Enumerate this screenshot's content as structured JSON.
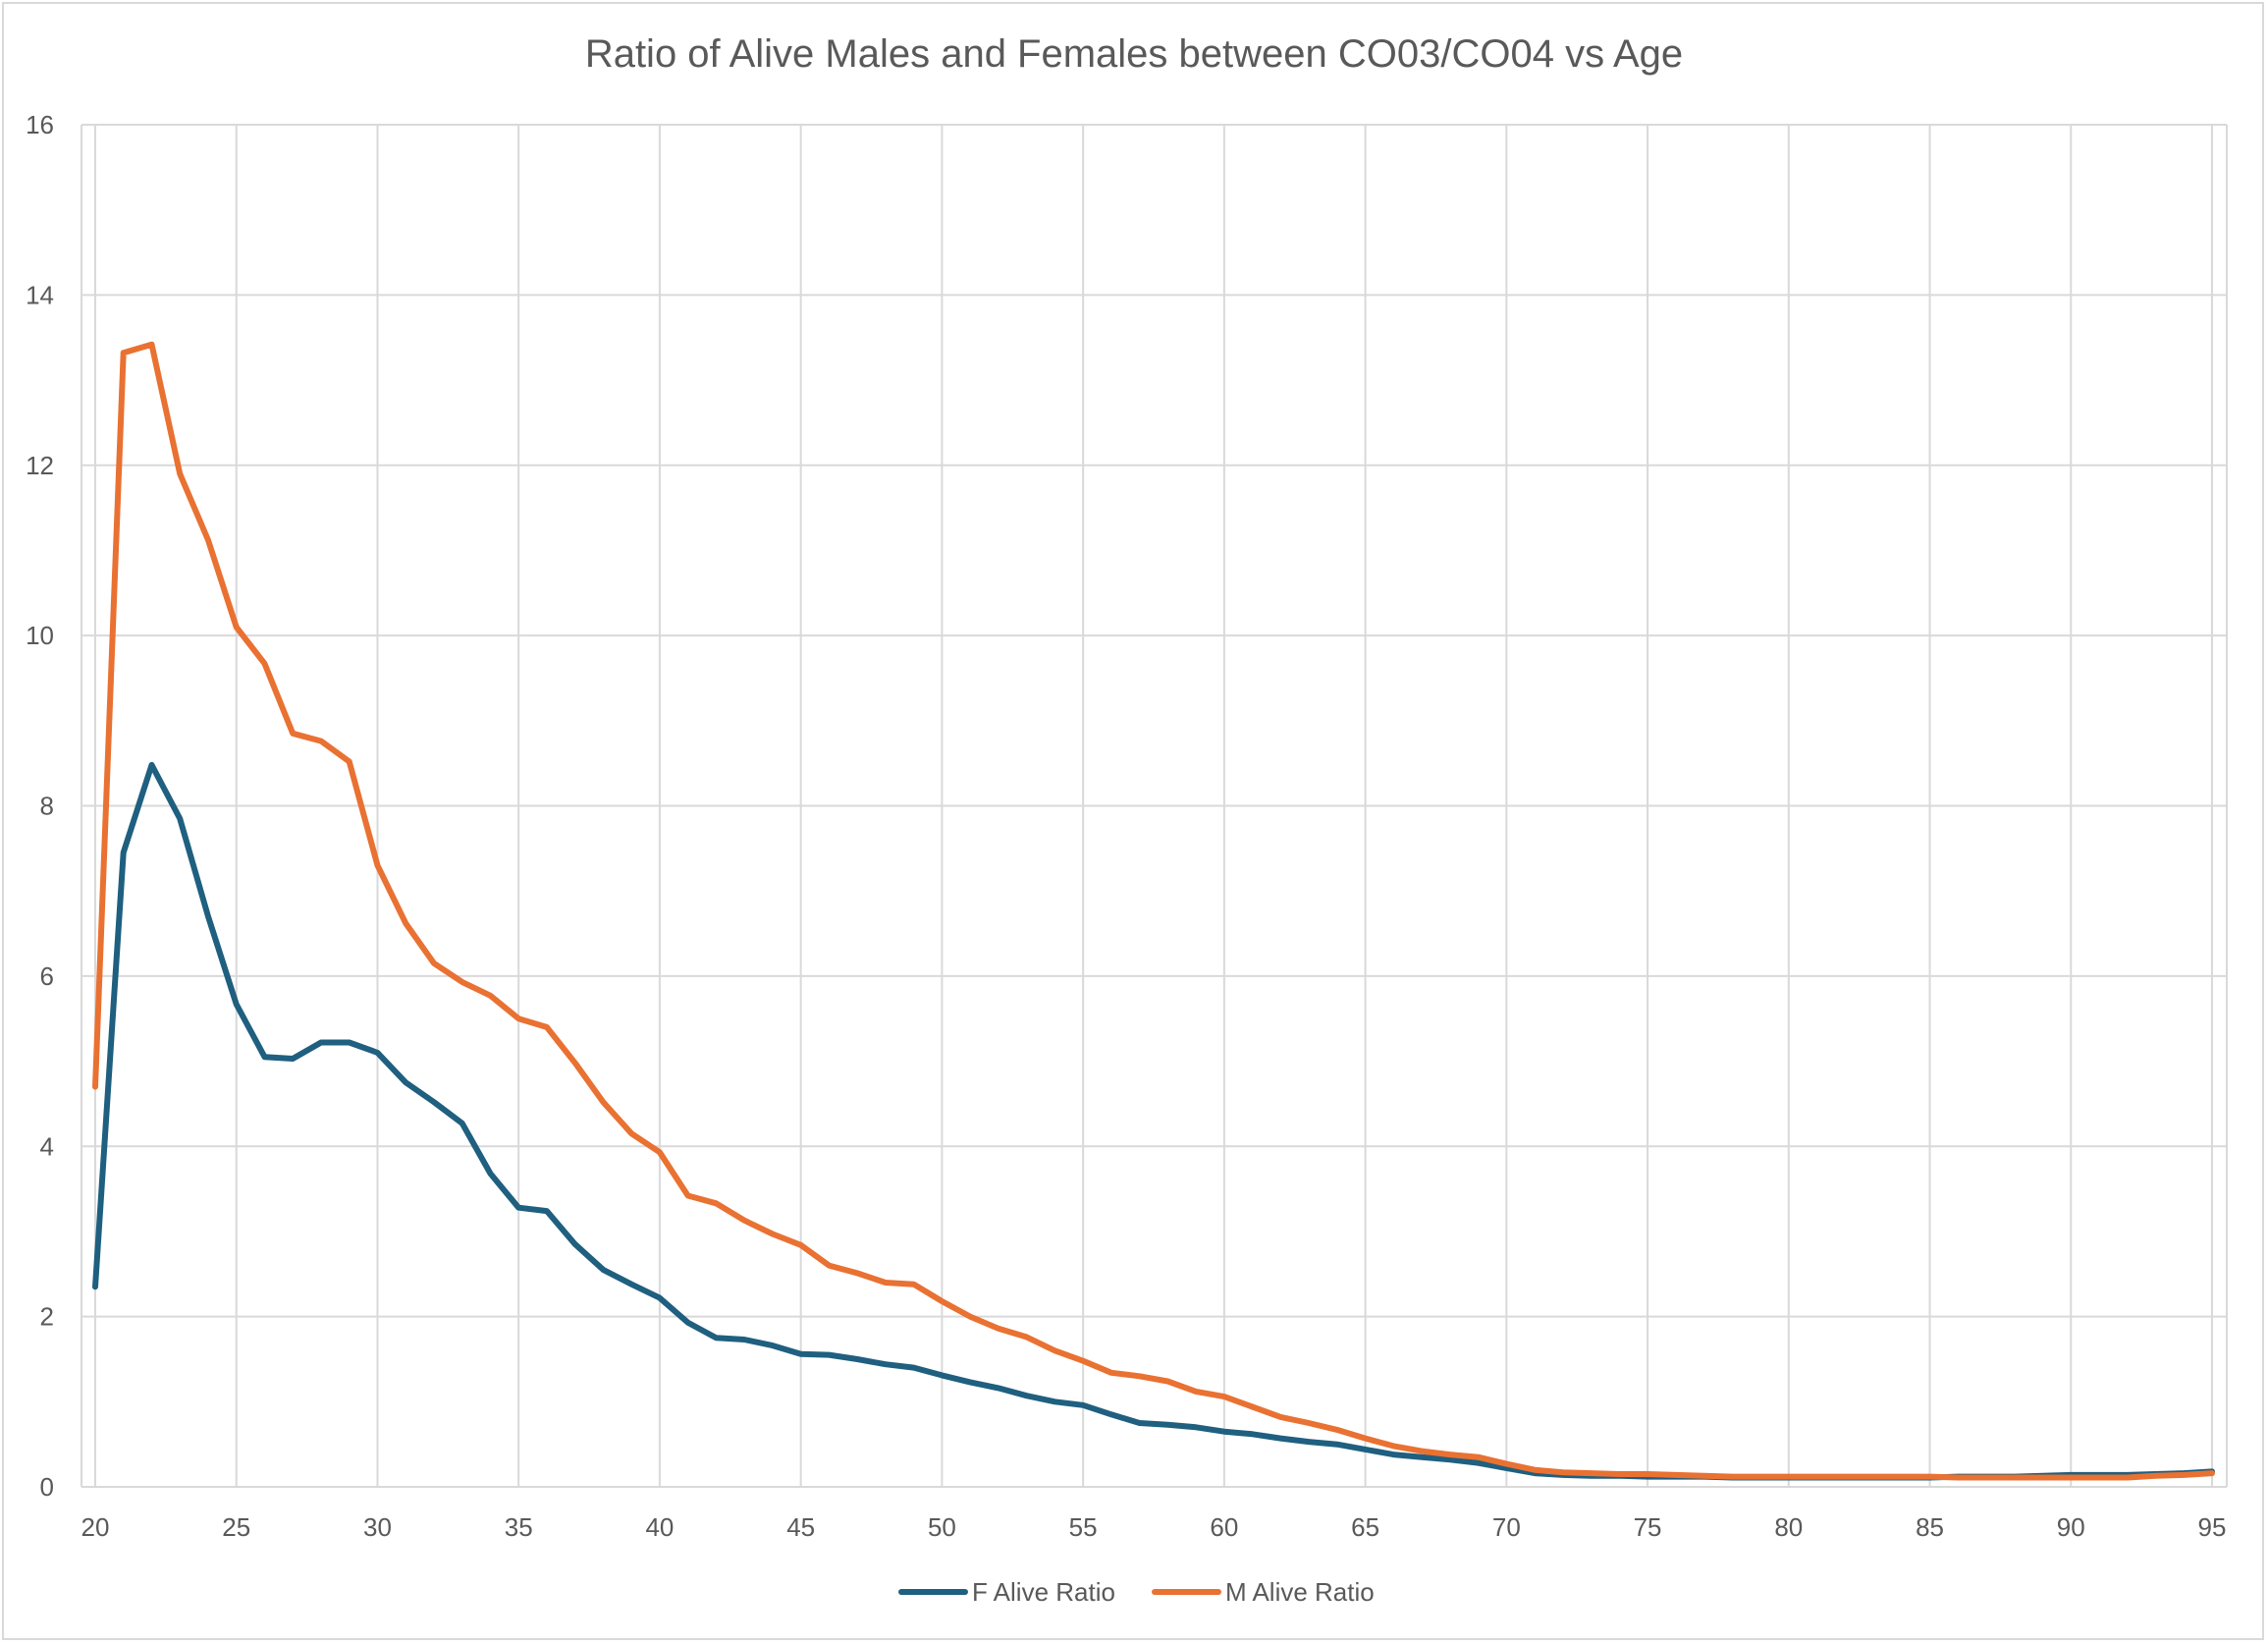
{
  "chart_data": {
    "type": "line",
    "title": "Ratio of Alive Males and Females between CO03/CO04 vs Age",
    "xlabel": "",
    "ylabel": "",
    "xlim": [
      20,
      95
    ],
    "ylim": [
      0,
      16
    ],
    "x_ticks": [
      20,
      25,
      30,
      35,
      40,
      45,
      50,
      55,
      60,
      65,
      70,
      75,
      80,
      85,
      90,
      95
    ],
    "y_ticks": [
      0,
      2,
      4,
      6,
      8,
      10,
      12,
      14,
      16
    ],
    "grid": "both",
    "legend_position": "bottom",
    "x": [
      20,
      21,
      22,
      23,
      24,
      25,
      26,
      27,
      28,
      29,
      30,
      31,
      32,
      33,
      34,
      35,
      36,
      37,
      38,
      39,
      40,
      41,
      42,
      43,
      44,
      45,
      46,
      47,
      48,
      49,
      50,
      51,
      52,
      53,
      54,
      55,
      56,
      57,
      58,
      59,
      60,
      61,
      62,
      63,
      64,
      65,
      66,
      67,
      68,
      69,
      70,
      71,
      72,
      73,
      74,
      75,
      76,
      77,
      78,
      79,
      80,
      81,
      82,
      83,
      84,
      85,
      86,
      87,
      88,
      89,
      90,
      91,
      92,
      93,
      94,
      95
    ],
    "series": [
      {
        "name": "F Alive Ratio",
        "color": "#1f5f7f",
        "values": [
          2.35,
          7.45,
          8.48,
          7.85,
          6.7,
          5.67,
          5.05,
          5.03,
          5.22,
          5.22,
          5.1,
          4.75,
          4.52,
          4.27,
          3.68,
          3.28,
          3.24,
          2.85,
          2.55,
          2.38,
          2.22,
          1.93,
          1.75,
          1.73,
          1.66,
          1.56,
          1.55,
          1.5,
          1.44,
          1.4,
          1.31,
          1.23,
          1.16,
          1.07,
          1.0,
          0.96,
          0.85,
          0.75,
          0.73,
          0.7,
          0.65,
          0.62,
          0.57,
          0.53,
          0.5,
          0.44,
          0.38,
          0.35,
          0.32,
          0.28,
          0.22,
          0.16,
          0.14,
          0.13,
          0.13,
          0.12,
          0.12,
          0.12,
          0.11,
          0.11,
          0.11,
          0.11,
          0.11,
          0.11,
          0.11,
          0.11,
          0.12,
          0.12,
          0.12,
          0.13,
          0.14,
          0.14,
          0.14,
          0.15,
          0.16,
          0.18
        ]
      },
      {
        "name": "M Alive Ratio",
        "color": "#e97132",
        "values": [
          4.7,
          13.32,
          13.42,
          11.9,
          11.12,
          10.1,
          9.67,
          8.85,
          8.76,
          8.52,
          7.3,
          6.62,
          6.15,
          5.93,
          5.77,
          5.5,
          5.4,
          4.98,
          4.52,
          4.15,
          3.93,
          3.42,
          3.33,
          3.13,
          2.97,
          2.84,
          2.6,
          2.51,
          2.4,
          2.38,
          2.18,
          2.0,
          1.86,
          1.76,
          1.6,
          1.48,
          1.34,
          1.3,
          1.24,
          1.12,
          1.06,
          0.94,
          0.82,
          0.75,
          0.67,
          0.57,
          0.48,
          0.42,
          0.38,
          0.35,
          0.27,
          0.2,
          0.17,
          0.16,
          0.15,
          0.15,
          0.14,
          0.13,
          0.12,
          0.12,
          0.12,
          0.12,
          0.12,
          0.12,
          0.12,
          0.12,
          0.11,
          0.11,
          0.11,
          0.11,
          0.11,
          0.11,
          0.11,
          0.13,
          0.14,
          0.16
        ]
      }
    ]
  }
}
